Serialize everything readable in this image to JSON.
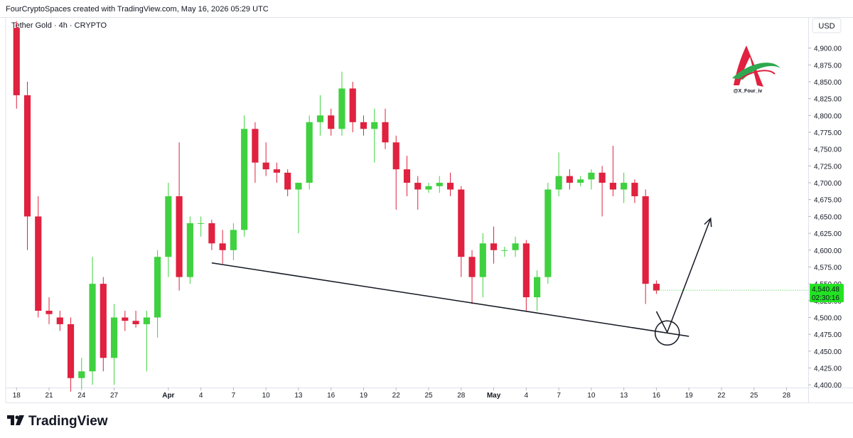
{
  "header": "FourCryptoSpaces created with TradingView.com, May 16, 2026 05:29 UTC",
  "footer_brand": "TradingView",
  "chart_data": {
    "type": "candlestick",
    "title": "Tether Gold · 4h · CRYPTO",
    "currency": "USD",
    "watermark": "@X_Four_iv",
    "up_color": "#3fd13f",
    "down_color": "#e0213f",
    "x": [
      "2026-03-18",
      "2026-03-19",
      "2026-03-20",
      "2026-03-21",
      "2026-03-22",
      "2026-03-23",
      "2026-03-24",
      "2026-03-25",
      "2026-03-26",
      "2026-03-27",
      "2026-03-28",
      "2026-03-29",
      "2026-03-30",
      "2026-03-31",
      "2026-04-01",
      "2026-04-02",
      "2026-04-03",
      "2026-04-04",
      "2026-04-05",
      "2026-04-06",
      "2026-04-07",
      "2026-04-08",
      "2026-04-09",
      "2026-04-10",
      "2026-04-11",
      "2026-04-12",
      "2026-04-13",
      "2026-04-14",
      "2026-04-15",
      "2026-04-16",
      "2026-04-17",
      "2026-04-18",
      "2026-04-19",
      "2026-04-20",
      "2026-04-21",
      "2026-04-22",
      "2026-04-23",
      "2026-04-24",
      "2026-04-25",
      "2026-04-26",
      "2026-04-27",
      "2026-04-28",
      "2026-04-29",
      "2026-04-30",
      "2026-05-01",
      "2026-05-02",
      "2026-05-03",
      "2026-05-04",
      "2026-05-05",
      "2026-05-06",
      "2026-05-07",
      "2026-05-08",
      "2026-05-09",
      "2026-05-10",
      "2026-05-11",
      "2026-05-12",
      "2026-05-13",
      "2026-05-14",
      "2026-05-15",
      "2026-05-16"
    ],
    "open": [
      4930,
      4830,
      4650,
      4510,
      4500,
      4490,
      4410,
      4420,
      4550,
      4440,
      4500,
      4495,
      4490,
      4500,
      4590,
      4680,
      4560,
      4640,
      4640,
      4610,
      4600,
      4630,
      4780,
      4730,
      4720,
      4715,
      4690,
      4700,
      4790,
      4800,
      4780,
      4840,
      4790,
      4780,
      4790,
      4760,
      4720,
      4700,
      4690,
      4695,
      4700,
      4690,
      4590,
      4560,
      4610,
      4600,
      4600,
      4610,
      4530,
      4560,
      4690,
      4710,
      4700,
      4705,
      4715,
      4700,
      4690,
      4700,
      4680,
      4550
    ],
    "high": [
      4940,
      4850,
      4680,
      4530,
      4510,
      4500,
      4440,
      4590,
      4560,
      4520,
      4510,
      4510,
      4510,
      4600,
      4700,
      4760,
      4650,
      4650,
      4645,
      4630,
      4640,
      4800,
      4790,
      4760,
      4730,
      4720,
      4700,
      4800,
      4830,
      4810,
      4865,
      4850,
      4800,
      4810,
      4810,
      4770,
      4740,
      4710,
      4700,
      4710,
      4715,
      4695,
      4600,
      4625,
      4635,
      4605,
      4620,
      4615,
      4570,
      4700,
      4745,
      4720,
      4710,
      4720,
      4725,
      4755,
      4715,
      4705,
      4690,
      4555
    ],
    "low": [
      4810,
      4600,
      4500,
      4490,
      4480,
      4390,
      4395,
      4400,
      4420,
      4400,
      4480,
      4485,
      4420,
      4470,
      4560,
      4540,
      4550,
      4620,
      4600,
      4580,
      4585,
      4620,
      4700,
      4710,
      4700,
      4680,
      4625,
      4690,
      4770,
      4770,
      4770,
      4775,
      4770,
      4730,
      4750,
      4660,
      4680,
      4660,
      4685,
      4685,
      4680,
      4560,
      4520,
      4530,
      4580,
      4590,
      4590,
      4510,
      4510,
      4550,
      4680,
      4690,
      4695,
      4690,
      4650,
      4680,
      4670,
      4670,
      4520,
      4535
    ],
    "close": [
      4830,
      4650,
      4510,
      4505,
      4490,
      4410,
      4420,
      4550,
      4440,
      4500,
      4495,
      4490,
      4500,
      4590,
      4680,
      4560,
      4640,
      4640,
      4610,
      4600,
      4630,
      4780,
      4730,
      4720,
      4715,
      4690,
      4700,
      4790,
      4800,
      4780,
      4840,
      4790,
      4780,
      4790,
      4760,
      4720,
      4700,
      4690,
      4695,
      4700,
      4690,
      4590,
      4560,
      4610,
      4600,
      4600,
      4610,
      4530,
      4560,
      4690,
      4710,
      4700,
      4705,
      4715,
      4700,
      4690,
      4700,
      4680,
      4550,
      4540
    ],
    "xlim": [
      "2026-03-17",
      "2026-05-30"
    ],
    "xticks": [
      {
        "value": "2026-03-18",
        "label": "18"
      },
      {
        "value": "2026-03-21",
        "label": "21"
      },
      {
        "value": "2026-03-24",
        "label": "24"
      },
      {
        "value": "2026-03-27",
        "label": "27"
      },
      {
        "value": "2026-04-01",
        "label": "Apr"
      },
      {
        "value": "2026-04-04",
        "label": "4"
      },
      {
        "value": "2026-04-07",
        "label": "7"
      },
      {
        "value": "2026-04-10",
        "label": "10"
      },
      {
        "value": "2026-04-13",
        "label": "13"
      },
      {
        "value": "2026-04-16",
        "label": "16"
      },
      {
        "value": "2026-04-19",
        "label": "19"
      },
      {
        "value": "2026-04-22",
        "label": "22"
      },
      {
        "value": "2026-04-25",
        "label": "25"
      },
      {
        "value": "2026-04-28",
        "label": "28"
      },
      {
        "value": "2026-05-01",
        "label": "May"
      },
      {
        "value": "2026-05-04",
        "label": "4"
      },
      {
        "value": "2026-05-07",
        "label": "7"
      },
      {
        "value": "2026-05-10",
        "label": "10"
      },
      {
        "value": "2026-05-13",
        "label": "13"
      },
      {
        "value": "2026-05-16",
        "label": "16"
      },
      {
        "value": "2026-05-19",
        "label": "19"
      },
      {
        "value": "2026-05-22",
        "label": "22"
      },
      {
        "value": "2026-05-25",
        "label": "25"
      },
      {
        "value": "2026-05-28",
        "label": "28"
      }
    ],
    "ylim": [
      4396,
      4945
    ],
    "yticks": [
      {
        "value": 4400,
        "label": "4,400.00"
      },
      {
        "value": 4425,
        "label": "4,425.00"
      },
      {
        "value": 4450,
        "label": "4,450.00"
      },
      {
        "value": 4475,
        "label": "4,475.00"
      },
      {
        "value": 4500,
        "label": "4,500.00"
      },
      {
        "value": 4525,
        "label": "4,525.00"
      },
      {
        "value": 4550,
        "label": "4,550.00"
      },
      {
        "value": 4575,
        "label": "4,575.00"
      },
      {
        "value": 4600,
        "label": "4,600.00"
      },
      {
        "value": 4625,
        "label": "4,625.00"
      },
      {
        "value": 4650,
        "label": "4,650.00"
      },
      {
        "value": 4675,
        "label": "4,675.00"
      },
      {
        "value": 4700,
        "label": "4,700.00"
      },
      {
        "value": 4725,
        "label": "4,725.00"
      },
      {
        "value": 4750,
        "label": "4,750.00"
      },
      {
        "value": 4775,
        "label": "4,775.00"
      },
      {
        "value": 4800,
        "label": "4,800.00"
      },
      {
        "value": 4825,
        "label": "4,825.00"
      },
      {
        "value": 4850,
        "label": "4,850.00"
      },
      {
        "value": 4875,
        "label": "4,875.00"
      },
      {
        "value": 4900,
        "label": "4,900.00"
      }
    ],
    "last_price": {
      "value": 4540.48,
      "label": "4,540.48"
    },
    "countdown": "02:30:16",
    "trendline": {
      "x": [
        "2026-04-05",
        "2026-05-19"
      ],
      "y": [
        4581,
        4472
      ]
    },
    "arrow": {
      "x": [
        "2026-05-16",
        "2026-05-17",
        "2026-05-21"
      ],
      "y": [
        4509,
        4478,
        4647
      ]
    },
    "circle": {
      "x": "2026-05-17",
      "y": 4477
    }
  }
}
